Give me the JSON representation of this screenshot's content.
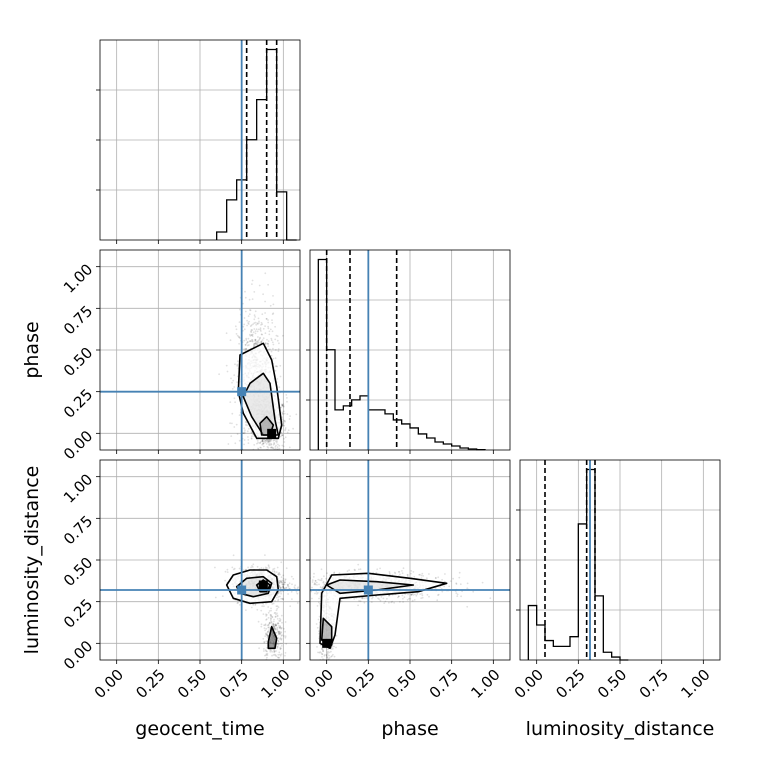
{
  "chart_data": {
    "type": "corner",
    "parameters": [
      "geocent_time",
      "phase",
      "luminosity_distance"
    ],
    "axis_titles": [
      "geocent_time",
      "phase",
      "luminosity_distance"
    ],
    "range": [
      [
        -0.1,
        1.1
      ],
      [
        -0.1,
        1.1
      ],
      [
        -0.1,
        1.1
      ]
    ],
    "tick_values": [
      0.0,
      0.25,
      0.5,
      0.75,
      1.0
    ],
    "tick_labels": [
      "0.00",
      "0.25",
      "0.50",
      "0.75",
      "1.00"
    ],
    "grid": true,
    "truth_color": "#4682b4",
    "truths": [
      0.75,
      0.25,
      0.32
    ],
    "quantiles": {
      "geocent_time": [
        0.78,
        0.9,
        0.96
      ],
      "phase": [
        0.0,
        0.14,
        0.42
      ],
      "luminosity_distance": [
        0.05,
        0.3,
        0.35
      ]
    },
    "histograms": [
      {
        "parameter": "geocent_time",
        "bin_edges": [
          0.6,
          0.66,
          0.72,
          0.78,
          0.84,
          0.9,
          0.96,
          1.02,
          1.08
        ],
        "counts": [
          0.04,
          0.2,
          0.3,
          0.5,
          0.7,
          0.95,
          0.24,
          0
        ]
      },
      {
        "parameter": "phase",
        "bin_edges": [
          -0.05,
          0.0,
          0.05,
          0.1,
          0.15,
          0.2,
          0.25,
          0.3,
          0.35,
          0.4,
          0.45,
          0.5,
          0.55,
          0.6,
          0.65,
          0.7,
          0.75,
          0.8,
          0.85,
          0.9,
          0.95
        ],
        "counts": [
          0.95,
          0.5,
          0.2,
          0.22,
          0.25,
          0.27,
          0.2,
          0.2,
          0.18,
          0.15,
          0.13,
          0.11,
          0.08,
          0.06,
          0.04,
          0.03,
          0.02,
          0.01,
          0.005,
          0.002
        ]
      },
      {
        "parameter": "luminosity_distance",
        "bin_edges": [
          -0.05,
          0.0,
          0.05,
          0.1,
          0.15,
          0.2,
          0.25,
          0.3,
          0.35,
          0.4,
          0.45,
          0.5,
          0.55
        ],
        "counts": [
          0.28,
          0.18,
          0.1,
          0.07,
          0.07,
          0.12,
          0.7,
          0.98,
          0.33,
          0.04,
          0.015,
          0
        ]
      }
    ],
    "joint_2d": [
      {
        "x": "geocent_time",
        "y": "phase",
        "peak": [
          0.93,
          0.0
        ],
        "contours": [
          [
            [
              0.73,
              0.25
            ],
            [
              0.74,
              0.47
            ],
            [
              0.88,
              0.54
            ],
            [
              0.93,
              0.44
            ],
            [
              0.96,
              0.28
            ],
            [
              0.99,
              0.05
            ],
            [
              0.97,
              -0.03
            ],
            [
              0.84,
              -0.03
            ],
            [
              0.76,
              0.12
            ]
          ],
          [
            [
              0.76,
              0.22
            ],
            [
              0.8,
              0.3
            ],
            [
              0.88,
              0.36
            ],
            [
              0.92,
              0.3
            ],
            [
              0.95,
              0.08
            ],
            [
              0.97,
              -0.01
            ],
            [
              0.88,
              -0.01
            ],
            [
              0.81,
              0.1
            ]
          ],
          [
            [
              0.86,
              0.06
            ],
            [
              0.9,
              0.1
            ],
            [
              0.94,
              0.05
            ],
            [
              0.92,
              -0.01
            ],
            [
              0.87,
              -0.01
            ]
          ]
        ],
        "cloud": [
          {
            "cx": 0.92,
            "cy": 0.05,
            "sx": 0.05,
            "sy": 0.08,
            "n": 600
          },
          {
            "cx": 0.84,
            "cy": 0.32,
            "sx": 0.06,
            "sy": 0.22,
            "n": 900
          }
        ]
      },
      {
        "x": "geocent_time",
        "y": "luminosity_distance",
        "peak": [
          0.88,
          0.35
        ],
        "contours": [
          [
            [
              0.66,
              0.35
            ],
            [
              0.7,
              0.41
            ],
            [
              0.8,
              0.44
            ],
            [
              0.9,
              0.44
            ],
            [
              0.96,
              0.4
            ],
            [
              0.97,
              0.32
            ],
            [
              0.93,
              0.25
            ],
            [
              0.8,
              0.24
            ],
            [
              0.7,
              0.27
            ]
          ],
          [
            [
              0.72,
              0.34
            ],
            [
              0.78,
              0.39
            ],
            [
              0.88,
              0.4
            ],
            [
              0.93,
              0.36
            ],
            [
              0.91,
              0.3
            ],
            [
              0.82,
              0.28
            ],
            [
              0.74,
              0.3
            ]
          ],
          [
            [
              0.84,
              0.35
            ],
            [
              0.88,
              0.38
            ],
            [
              0.92,
              0.35
            ],
            [
              0.9,
              0.31
            ],
            [
              0.86,
              0.31
            ]
          ],
          [
            [
              0.91,
              0.01
            ],
            [
              0.93,
              0.1
            ],
            [
              0.96,
              0.03
            ],
            [
              0.95,
              -0.03
            ],
            [
              0.91,
              -0.03
            ]
          ]
        ],
        "cloud": [
          {
            "cx": 0.86,
            "cy": 0.35,
            "sx": 0.08,
            "sy": 0.05,
            "n": 1000
          },
          {
            "cx": 0.94,
            "cy": 0.05,
            "sx": 0.03,
            "sy": 0.09,
            "n": 300
          }
        ]
      },
      {
        "x": "phase",
        "y": "luminosity_distance",
        "peak": [
          0.0,
          0.0
        ],
        "contours": [
          [
            [
              -0.04,
              0.0
            ],
            [
              -0.03,
              0.3
            ],
            [
              0.03,
              0.41
            ],
            [
              0.25,
              0.42
            ],
            [
              0.5,
              0.39
            ],
            [
              0.72,
              0.36
            ],
            [
              0.55,
              0.31
            ],
            [
              0.3,
              0.29
            ],
            [
              0.08,
              0.27
            ],
            [
              0.05,
              0.05
            ],
            [
              0.02,
              -0.03
            ]
          ],
          [
            [
              0.0,
              0.35
            ],
            [
              0.08,
              0.38
            ],
            [
              0.3,
              0.37
            ],
            [
              0.52,
              0.35
            ],
            [
              0.3,
              0.32
            ],
            [
              0.08,
              0.3
            ]
          ],
          [
            [
              -0.03,
              0.02
            ],
            [
              -0.02,
              0.15
            ],
            [
              0.03,
              0.1
            ],
            [
              0.03,
              -0.01
            ]
          ]
        ],
        "cloud": [
          {
            "cx": 0.28,
            "cy": 0.34,
            "sx": 0.22,
            "sy": 0.04,
            "n": 900
          },
          {
            "cx": 0.0,
            "cy": 0.08,
            "sx": 0.025,
            "sy": 0.12,
            "n": 400
          }
        ]
      }
    ]
  }
}
